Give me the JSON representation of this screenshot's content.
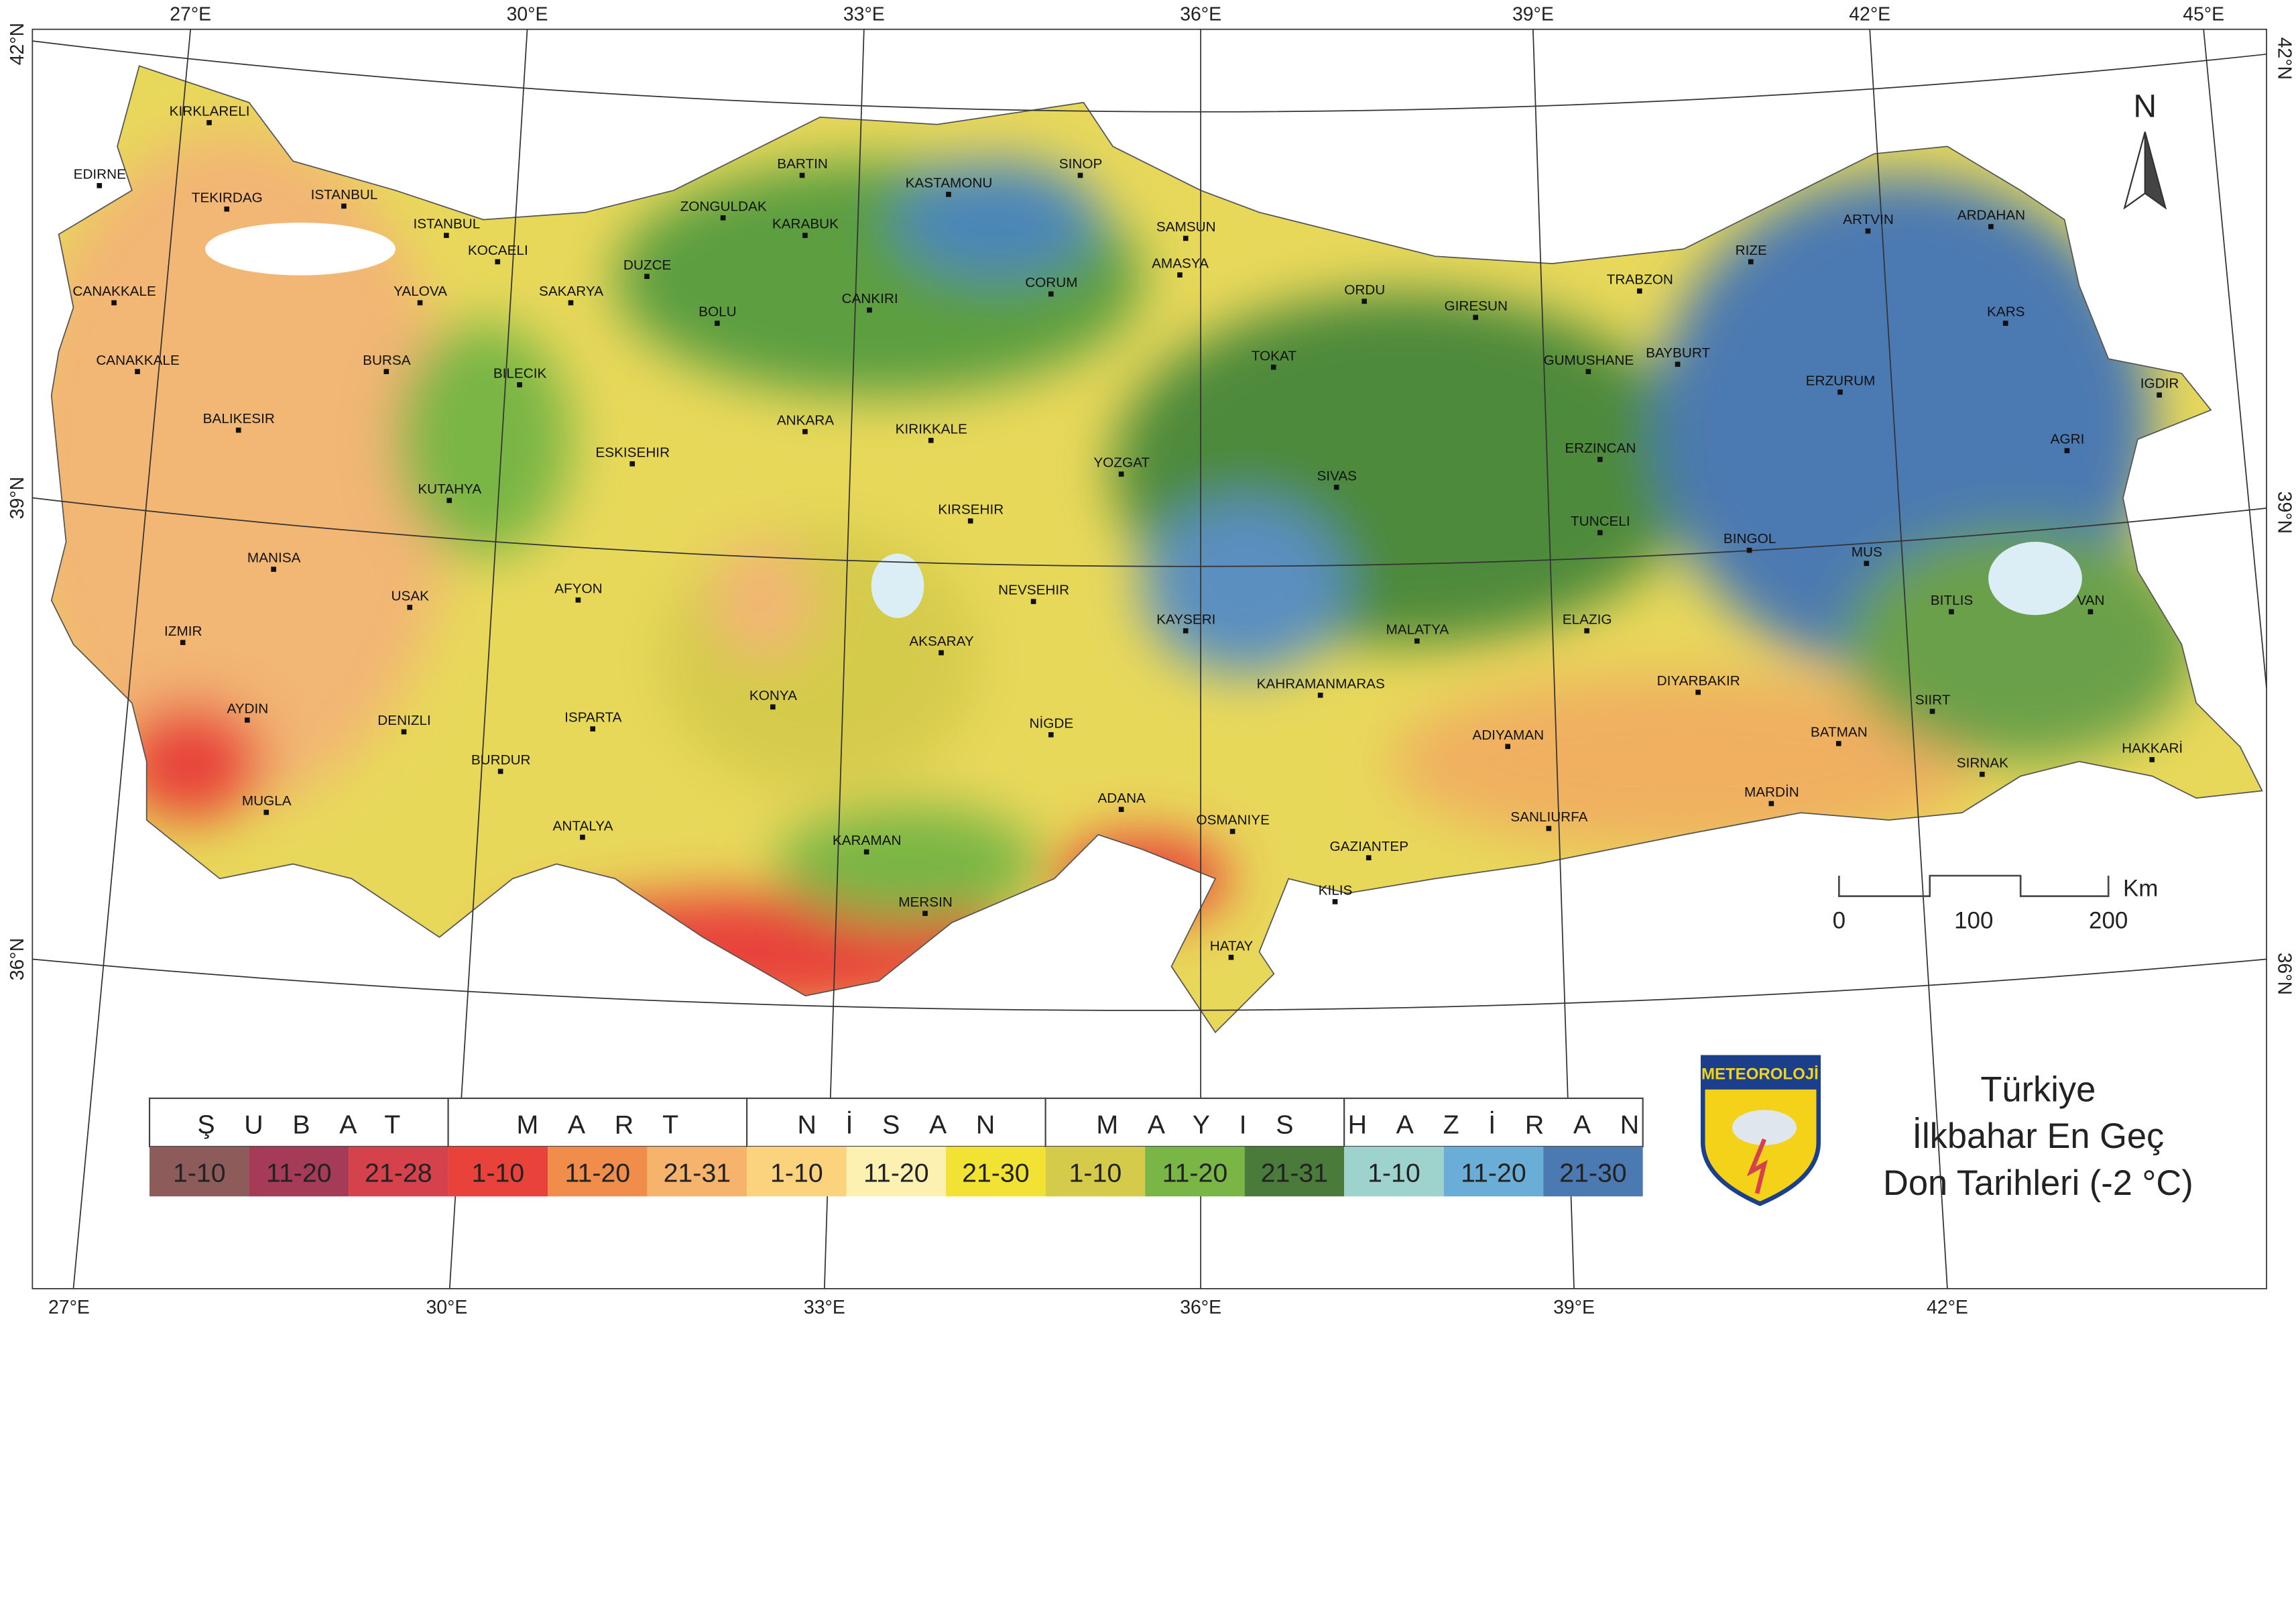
{
  "graticule": {
    "top": [
      "27°E",
      "30°E",
      "33°E",
      "36°E",
      "39°E",
      "42°E",
      "45°E"
    ],
    "bottom": [
      "27°E",
      "30°E",
      "33°E",
      "36°E",
      "39°E",
      "42°E"
    ],
    "left": [
      "42°N",
      "39°N",
      "36°N"
    ],
    "right": [
      "42°N",
      "39°N",
      "36°N"
    ]
  },
  "cities": [
    "KIRKLARELI",
    "EDIRNE",
    "TEKIRDAG",
    "ISTANBUL",
    "ISTANBUL",
    "KOCAELI",
    "YALOVA",
    "SAKARYA",
    "DUZCE",
    "ZONGULDAK",
    "BARTIN",
    "KARABUK",
    "KASTAMONU",
    "SINOP",
    "SAMSUN",
    "CANAKKALE",
    "CANAKKALE",
    "BURSA",
    "BILECIK",
    "BOLU",
    "CANKIRI",
    "CORUM",
    "AMASYA",
    "TOKAT",
    "ORDU",
    "GIRESUN",
    "TRABZON",
    "RIZE",
    "ARTVIN",
    "ARDAHAN",
    "KARS",
    "GUMUSHANE",
    "BAYBURT",
    "ERZURUM",
    "IGDIR",
    "AGRI",
    "ERZINCAN",
    "BALIKESIR",
    "ANKARA",
    "KIRIKKALE",
    "ESKISEHIR",
    "YOZGAT",
    "SIVAS",
    "KUTAHYA",
    "KIRSEHIR",
    "TUNCELI",
    "BINGOL",
    "MUS",
    "MANISA",
    "USAK",
    "AFYON",
    "NEVSEHIR",
    "BITLIS",
    "VAN",
    "IZMIR",
    "KAYSERI",
    "AKSARAY",
    "MALATYA",
    "ELAZIG",
    "KAHRAMANMARAS",
    "DIYARBAKIR",
    "AYDIN",
    "DENIZLI",
    "ISPARTA",
    "KONYA",
    "NİGDE",
    "ADIYAMAN",
    "SIIRT",
    "BATMAN",
    "HAKKARİ",
    "SIRNAK",
    "BURDUR",
    "MUGLA",
    "ADANA",
    "MARDİN",
    "OSMANIYE",
    "SANLIURFA",
    "ANTALYA",
    "KARAMAN",
    "GAZIANTEP",
    "KILIS",
    "MERSIN",
    "HATAY"
  ],
  "legend": {
    "months": [
      {
        "name": "ŞUBAT",
        "ranges": [
          {
            "label": "1-10",
            "color": "#8e5b5b"
          },
          {
            "label": "11-20",
            "color": "#a63b57"
          },
          {
            "label": "21-28",
            "color": "#d5424b"
          }
        ]
      },
      {
        "name": "MART",
        "ranges": [
          {
            "label": "1-10",
            "color": "#e8423a"
          },
          {
            "label": "11-20",
            "color": "#f08d4b"
          },
          {
            "label": "21-31",
            "color": "#f5b36c"
          }
        ]
      },
      {
        "name": "NİSAN",
        "ranges": [
          {
            "label": "1-10",
            "color": "#fad37c"
          },
          {
            "label": "11-20",
            "color": "#fdf1b2"
          },
          {
            "label": "21-30",
            "color": "#f2e233"
          }
        ]
      },
      {
        "name": "MAYIS",
        "ranges": [
          {
            "label": "1-10",
            "color": "#d5cb4b"
          },
          {
            "label": "11-20",
            "color": "#79b645"
          },
          {
            "label": "21-31",
            "color": "#4b7b3b"
          }
        ]
      },
      {
        "name": "HAZİRAN",
        "ranges": [
          {
            "label": "1-10",
            "color": "#9dd2cd"
          },
          {
            "label": "11-20",
            "color": "#6aaed7"
          },
          {
            "label": "21-30",
            "color": "#4b79b1"
          }
        ]
      }
    ]
  },
  "title": {
    "lines": [
      "Türkiye",
      "İlkbahar En Geç",
      "Don Tarihleri (-2 °C)"
    ]
  },
  "scale_bar": {
    "unit": "Km",
    "labels": [
      "0",
      "100",
      "200"
    ]
  },
  "north": "N",
  "logo": "METEOROLOJİ"
}
